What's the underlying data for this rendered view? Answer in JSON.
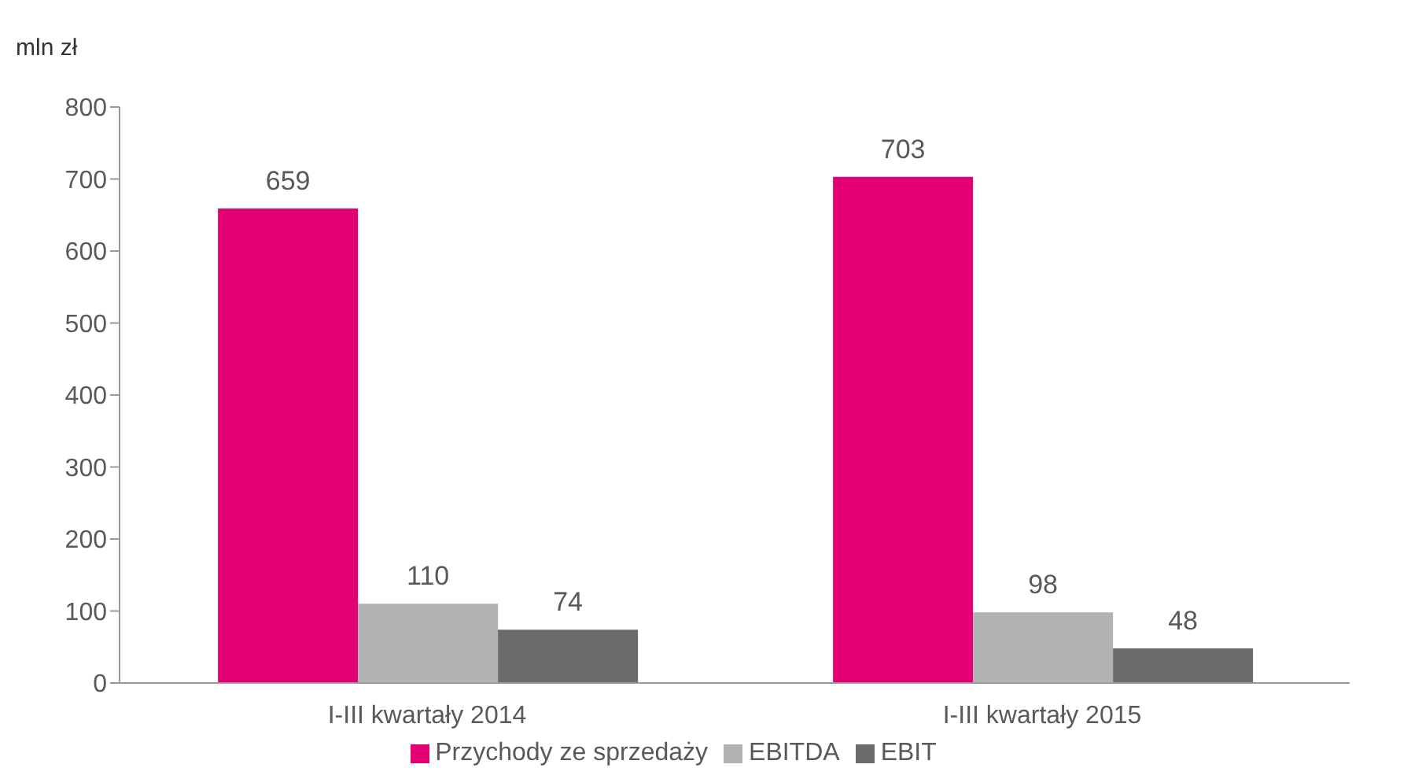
{
  "chart_data": {
    "type": "bar",
    "ylabel": "mln zł",
    "categories": [
      "I-III kwartały 2014",
      "I-III kwartały 2015"
    ],
    "series": [
      {
        "name": "Przychody ze sprzedaży",
        "color": "#e20074",
        "values": [
          659,
          703
        ]
      },
      {
        "name": "EBITDA",
        "color": "#b2b2b2",
        "values": [
          110,
          98
        ]
      },
      {
        "name": "EBIT",
        "color": "#6b6b6b",
        "values": [
          74,
          48
        ]
      }
    ],
    "ylim": [
      0,
      800
    ],
    "yticks": [
      0,
      100,
      200,
      300,
      400,
      500,
      600,
      700,
      800
    ],
    "data_labels": true,
    "grid": false,
    "legend": "bottom"
  }
}
